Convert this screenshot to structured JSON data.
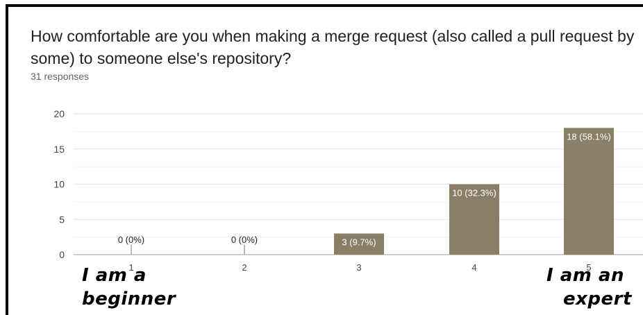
{
  "question": {
    "title": "How comfortable are you when making a merge request (also called a pull request by some) to someone else's repository?",
    "responses": "31 responses"
  },
  "annotations": {
    "left_line1": "I am a",
    "left_line2": "beginner",
    "right_line1": "I am an",
    "right_line2": "expert"
  },
  "colors": {
    "bar": "#8b7e66",
    "grid": "#e6e6e6",
    "axis": "#9e9e9e",
    "bar_label_inside": "#ffffff",
    "bar_label_outside": "#202124"
  },
  "chart_data": {
    "type": "bar",
    "categories": [
      "1",
      "2",
      "3",
      "4",
      "5"
    ],
    "values": [
      0,
      0,
      3,
      10,
      18
    ],
    "data_labels": [
      "0 (0%)",
      "0 (0%)",
      "3 (9.7%)",
      "10 (32.3%)",
      "18 (58.1%)"
    ],
    "yticks": [
      "0",
      "5",
      "10",
      "15",
      "20"
    ],
    "ylim": [
      0,
      20
    ],
    "grid": true,
    "xlabel": "",
    "ylabel": ""
  }
}
